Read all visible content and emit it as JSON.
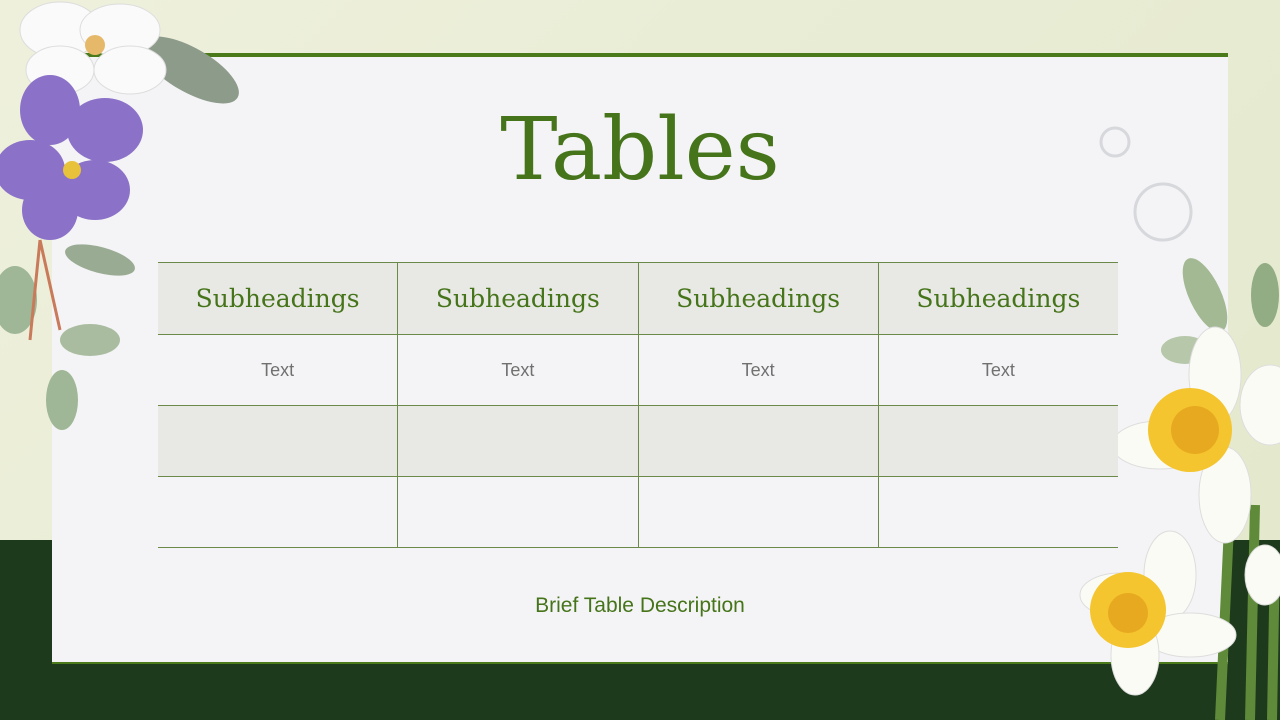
{
  "slide": {
    "title": "Tables",
    "table": {
      "headers": [
        "Subheadings",
        "Subheadings",
        "Subheadings",
        "Subheadings"
      ],
      "rows": [
        [
          "Text",
          "Text",
          "Text",
          "Text"
        ],
        [
          "",
          "",
          "",
          ""
        ],
        [
          "",
          "",
          "",
          ""
        ]
      ]
    },
    "description": "Brief Table Description"
  },
  "colors": {
    "accent": "#46741a",
    "dark_band": "#1e3a1c",
    "card": "#f4f4f6"
  }
}
